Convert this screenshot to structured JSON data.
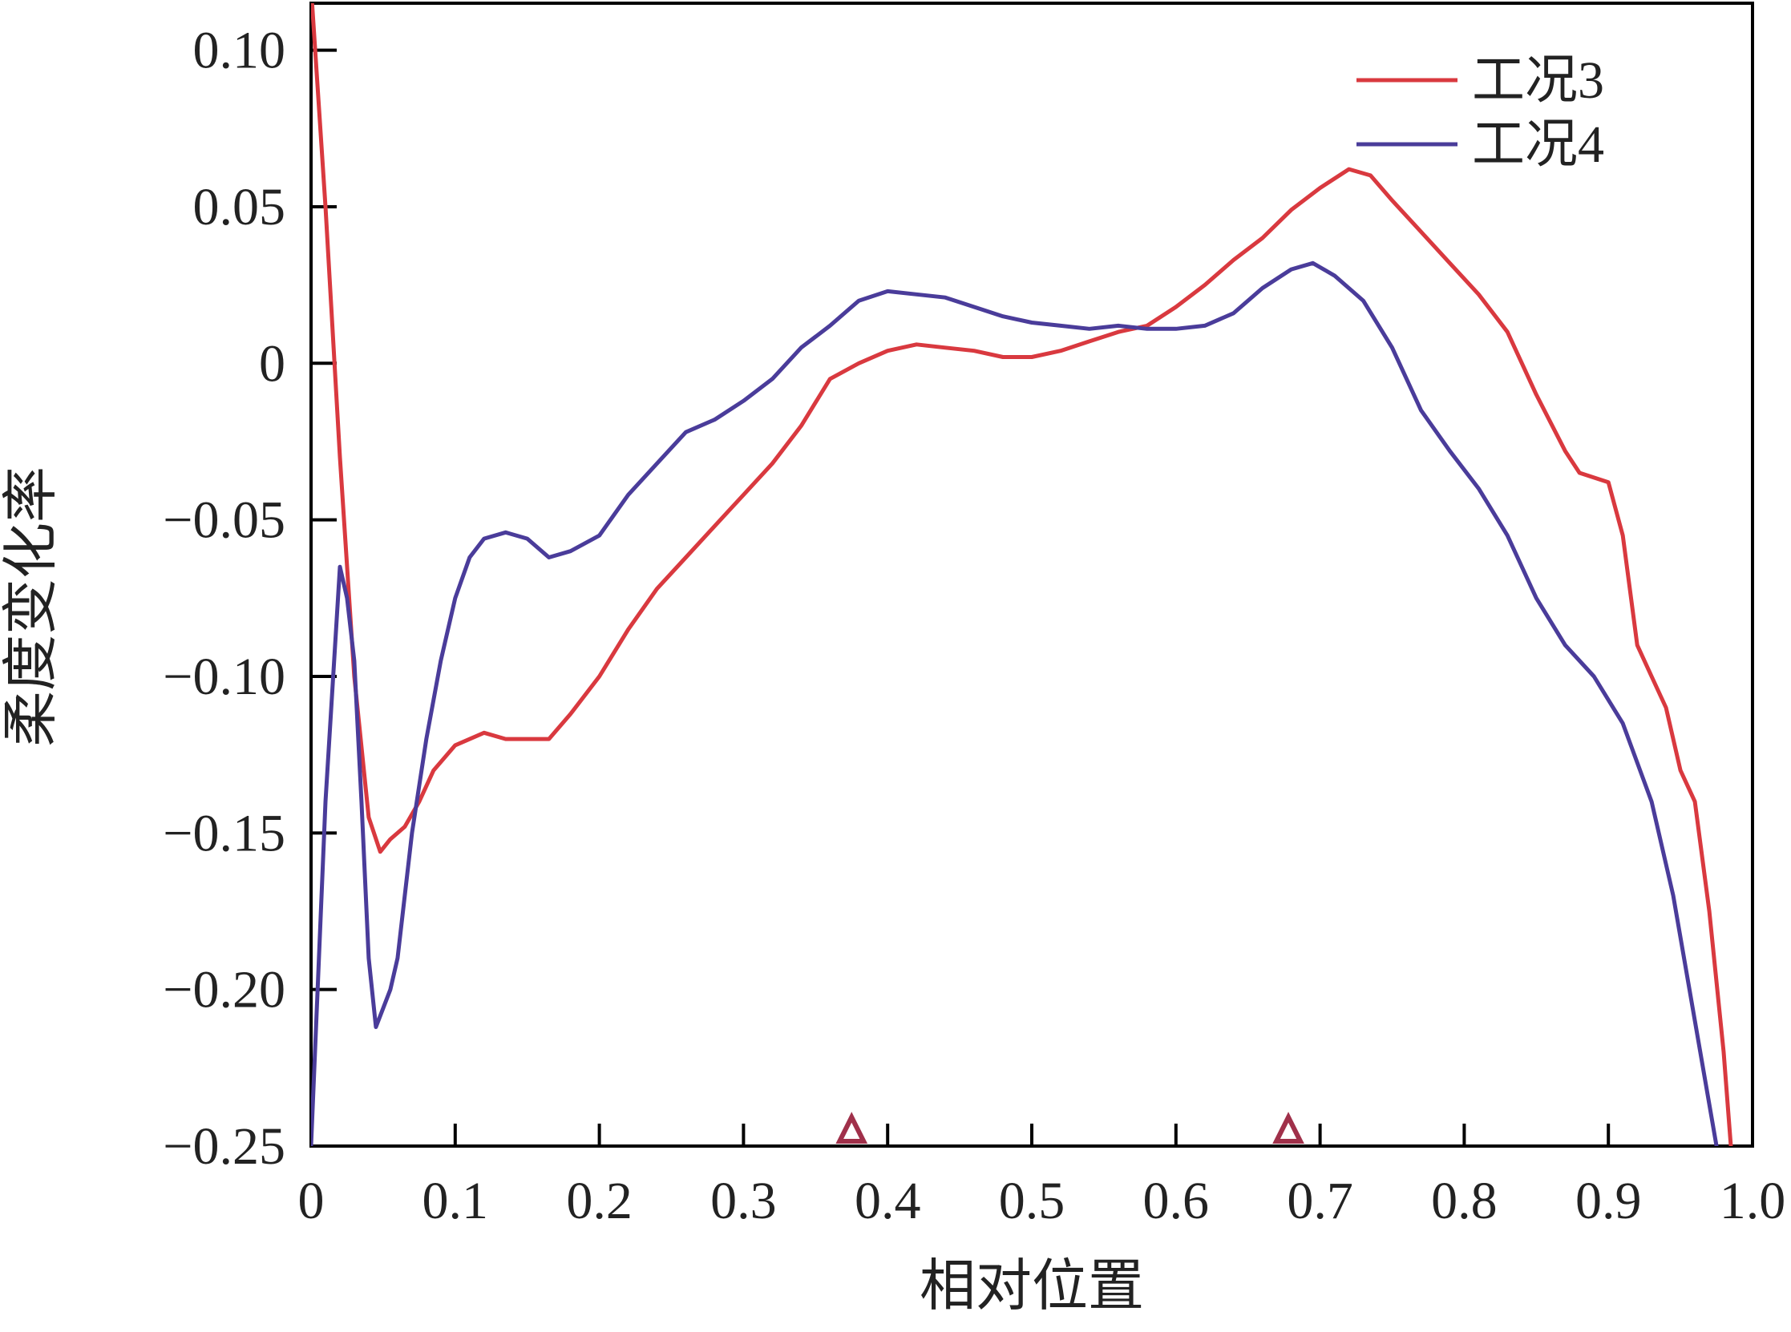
{
  "chart_data": {
    "type": "line",
    "title": "",
    "xlabel": "相对位置",
    "ylabel": "柔度变化率",
    "xlim": [
      0,
      1.0
    ],
    "ylim": [
      -0.25,
      0.115
    ],
    "grid": false,
    "legend_position": "top-right",
    "x_ticks": [
      {
        "value": 0,
        "label": "0"
      },
      {
        "value": 0.1,
        "label": "0.1"
      },
      {
        "value": 0.2,
        "label": "0.2"
      },
      {
        "value": 0.3,
        "label": "0.3"
      },
      {
        "value": 0.4,
        "label": "0.4"
      },
      {
        "value": 0.5,
        "label": "0.5"
      },
      {
        "value": 0.6,
        "label": "0.6"
      },
      {
        "value": 0.7,
        "label": "0.7"
      },
      {
        "value": 0.8,
        "label": "0.8"
      },
      {
        "value": 0.9,
        "label": "0.9"
      },
      {
        "value": 1.0,
        "label": "1.0"
      }
    ],
    "y_ticks": [
      {
        "value": 0.1,
        "label": "0.10"
      },
      {
        "value": 0.05,
        "label": "0.05"
      },
      {
        "value": 0,
        "label": "0"
      },
      {
        "value": -0.05,
        "label": "−0.05"
      },
      {
        "value": -0.1,
        "label": "−0.10"
      },
      {
        "value": -0.15,
        "label": "−0.15"
      },
      {
        "value": -0.2,
        "label": "−0.20"
      },
      {
        "value": -0.25,
        "label": "−0.25"
      }
    ],
    "markers": [
      {
        "x": 0.375,
        "symbol": "triangle",
        "color": "#a0304a"
      },
      {
        "x": 0.678,
        "symbol": "triangle",
        "color": "#a0304a"
      }
    ],
    "series": [
      {
        "name": "工况3",
        "color": "#d9393f",
        "points": [
          [
            0.0,
            0.12
          ],
          [
            0.01,
            0.05
          ],
          [
            0.02,
            -0.03
          ],
          [
            0.03,
            -0.1
          ],
          [
            0.04,
            -0.145
          ],
          [
            0.048,
            -0.156
          ],
          [
            0.055,
            -0.152
          ],
          [
            0.065,
            -0.148
          ],
          [
            0.075,
            -0.14
          ],
          [
            0.085,
            -0.13
          ],
          [
            0.1,
            -0.122
          ],
          [
            0.12,
            -0.118
          ],
          [
            0.135,
            -0.12
          ],
          [
            0.15,
            -0.12
          ],
          [
            0.165,
            -0.12
          ],
          [
            0.18,
            -0.112
          ],
          [
            0.2,
            -0.1
          ],
          [
            0.22,
            -0.085
          ],
          [
            0.24,
            -0.072
          ],
          [
            0.26,
            -0.062
          ],
          [
            0.28,
            -0.052
          ],
          [
            0.3,
            -0.042
          ],
          [
            0.32,
            -0.032
          ],
          [
            0.34,
            -0.02
          ],
          [
            0.36,
            -0.005
          ],
          [
            0.38,
            0.0
          ],
          [
            0.4,
            0.004
          ],
          [
            0.42,
            0.006
          ],
          [
            0.44,
            0.005
          ],
          [
            0.46,
            0.004
          ],
          [
            0.48,
            0.002
          ],
          [
            0.5,
            0.002
          ],
          [
            0.52,
            0.004
          ],
          [
            0.54,
            0.007
          ],
          [
            0.56,
            0.01
          ],
          [
            0.58,
            0.012
          ],
          [
            0.6,
            0.018
          ],
          [
            0.62,
            0.025
          ],
          [
            0.64,
            0.033
          ],
          [
            0.66,
            0.04
          ],
          [
            0.68,
            0.049
          ],
          [
            0.7,
            0.056
          ],
          [
            0.72,
            0.062
          ],
          [
            0.735,
            0.06
          ],
          [
            0.75,
            0.052
          ],
          [
            0.77,
            0.042
          ],
          [
            0.79,
            0.032
          ],
          [
            0.81,
            0.022
          ],
          [
            0.83,
            0.01
          ],
          [
            0.85,
            -0.01
          ],
          [
            0.87,
            -0.028
          ],
          [
            0.88,
            -0.035
          ],
          [
            0.9,
            -0.038
          ],
          [
            0.91,
            -0.055
          ],
          [
            0.92,
            -0.09
          ],
          [
            0.93,
            -0.1
          ],
          [
            0.94,
            -0.11
          ],
          [
            0.95,
            -0.13
          ],
          [
            0.96,
            -0.14
          ],
          [
            0.97,
            -0.175
          ],
          [
            0.98,
            -0.22
          ],
          [
            0.985,
            -0.25
          ]
        ]
      },
      {
        "name": "工况4",
        "color": "#4a3c9a",
        "points": [
          [
            0.0,
            -0.25
          ],
          [
            0.01,
            -0.14
          ],
          [
            0.02,
            -0.065
          ],
          [
            0.025,
            -0.075
          ],
          [
            0.03,
            -0.095
          ],
          [
            0.035,
            -0.14
          ],
          [
            0.04,
            -0.19
          ],
          [
            0.045,
            -0.212
          ],
          [
            0.055,
            -0.2
          ],
          [
            0.06,
            -0.19
          ],
          [
            0.07,
            -0.15
          ],
          [
            0.08,
            -0.12
          ],
          [
            0.09,
            -0.095
          ],
          [
            0.1,
            -0.075
          ],
          [
            0.11,
            -0.062
          ],
          [
            0.12,
            -0.056
          ],
          [
            0.135,
            -0.054
          ],
          [
            0.15,
            -0.056
          ],
          [
            0.165,
            -0.062
          ],
          [
            0.18,
            -0.06
          ],
          [
            0.2,
            -0.055
          ],
          [
            0.22,
            -0.042
          ],
          [
            0.24,
            -0.032
          ],
          [
            0.26,
            -0.022
          ],
          [
            0.28,
            -0.018
          ],
          [
            0.3,
            -0.012
          ],
          [
            0.32,
            -0.005
          ],
          [
            0.34,
            0.005
          ],
          [
            0.36,
            0.012
          ],
          [
            0.38,
            0.02
          ],
          [
            0.4,
            0.023
          ],
          [
            0.42,
            0.022
          ],
          [
            0.44,
            0.021
          ],
          [
            0.46,
            0.018
          ],
          [
            0.48,
            0.015
          ],
          [
            0.5,
            0.013
          ],
          [
            0.52,
            0.012
          ],
          [
            0.54,
            0.011
          ],
          [
            0.56,
            0.012
          ],
          [
            0.58,
            0.011
          ],
          [
            0.6,
            0.011
          ],
          [
            0.62,
            0.012
          ],
          [
            0.64,
            0.016
          ],
          [
            0.66,
            0.024
          ],
          [
            0.68,
            0.03
          ],
          [
            0.695,
            0.032
          ],
          [
            0.71,
            0.028
          ],
          [
            0.73,
            0.02
          ],
          [
            0.75,
            0.005
          ],
          [
            0.77,
            -0.015
          ],
          [
            0.79,
            -0.028
          ],
          [
            0.81,
            -0.04
          ],
          [
            0.83,
            -0.055
          ],
          [
            0.85,
            -0.075
          ],
          [
            0.87,
            -0.09
          ],
          [
            0.89,
            -0.1
          ],
          [
            0.91,
            -0.115
          ],
          [
            0.93,
            -0.14
          ],
          [
            0.945,
            -0.17
          ],
          [
            0.96,
            -0.21
          ],
          [
            0.975,
            -0.25
          ]
        ]
      }
    ]
  }
}
